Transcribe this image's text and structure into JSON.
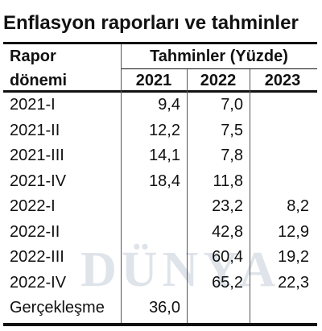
{
  "title": "Enflasyon raporları ve tahminler",
  "watermark": "DÜNYA",
  "table": {
    "header": {
      "period_label_line1": "Rapor",
      "period_label_line2": "dönemi",
      "group_label": "Tahminler (Yüzde)",
      "years": [
        "2021",
        "2022",
        "2023"
      ]
    },
    "rows": [
      [
        "2021-I",
        "9,4",
        "7,0",
        null
      ],
      [
        "2021-II",
        "12,2",
        "7,5",
        null
      ],
      [
        "2021-III",
        "14,1",
        "7,8",
        null
      ],
      [
        "2021-IV",
        "18,4",
        "11,8",
        null
      ],
      [
        "2022-I",
        null,
        "23,2",
        "8,2"
      ],
      [
        "2022-II",
        null,
        "42,8",
        "12,9"
      ],
      [
        "2022-III",
        null,
        "60,4",
        "19,2"
      ],
      [
        "2022-IV",
        null,
        "65,2",
        "22,3"
      ],
      [
        "Gerçekleşme",
        "36,0",
        null,
        null
      ]
    ]
  }
}
